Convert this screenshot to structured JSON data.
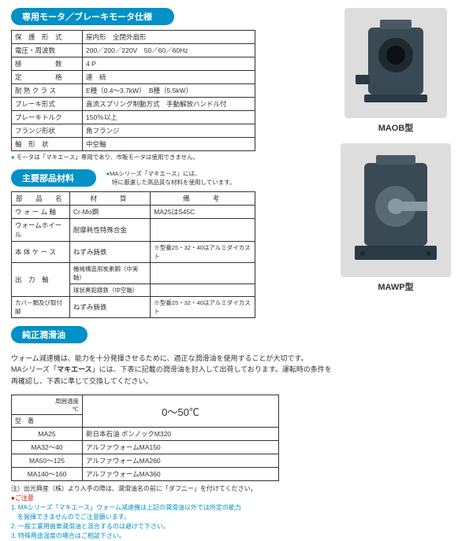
{
  "sections": {
    "motor_spec": "専用モータ／ブレーキモータ仕様",
    "materials": "主要部品材料",
    "lubricant": "純正潤滑油"
  },
  "motor_spec_table": {
    "rows": [
      {
        "label": "保　護　形　式",
        "value": "屋内形　全閉外扇形"
      },
      {
        "label": "電圧・周波数",
        "value": "200／200／220V　50／60／60Hz"
      },
      {
        "label": "極　　　　　数",
        "value": "4 P"
      },
      {
        "label": "定　　　　　格",
        "value": "連　続"
      },
      {
        "label": "耐 熱 ク ラ ス",
        "value": "E種（0.4～3.7kW）　B種（5.5kW）"
      },
      {
        "label": "ブレーキ形式",
        "value": "直流スプリング制動方式　手動解放ハンドル付"
      },
      {
        "label": "ブレーキトルク",
        "value": "150％以上"
      },
      {
        "label": "フランジ形状",
        "value": "角フランジ"
      },
      {
        "label": "軸　形　状",
        "value": "中空軸"
      }
    ],
    "note": "モータは「マキエース」専用であり、市販モータは使用できません。"
  },
  "materials_note": {
    "line1": "MAシリーズ「マキエース」には、",
    "line2": "特に厳選した高品質な材料を使用しています。"
  },
  "materials_table": {
    "headers": {
      "name": "部　品　名",
      "material": "材　　質",
      "remark": "備　　考"
    },
    "rows": [
      {
        "name": "ウ ォ ー ム 軸",
        "material": "Cr-Mo鋼",
        "remark": "MA25はS45C"
      },
      {
        "name": "ウォームホイール",
        "material": "耐摩耗性特殊合金",
        "remark": ""
      },
      {
        "name": "本 体 ケ ー ス",
        "material": "ねずみ鋳鉄",
        "remark": "※型番25・32・40はアルミダイカスト"
      },
      {
        "name_rowspan": "出　力　軸",
        "material": "機械構造用炭素鋼（中実軸）",
        "remark": ""
      },
      {
        "material2": "球状黒鉛鋳鉄（中空軸）",
        "remark2": ""
      },
      {
        "name": "カバー類及び取付脚",
        "material": "ねずみ鋳鉄",
        "remark": "※型番25・32・40はアルミダイカスト"
      }
    ]
  },
  "lubricant_text": {
    "line1": "ウォーム減速機は、能力を十分発揮させるために、適正な潤滑油を使用することが大切です。",
    "line2a": "MAシリーズ「",
    "line2b": "マキエース",
    "line2c": "」には、下表に記載の潤滑油を封入して出荷しております。運転時の条件を",
    "line3": "再確認し、下表に準じて交換してください。"
  },
  "lubricant_table": {
    "header_temp_label": "周囲温度\n℃",
    "header_model": "型　番",
    "temp_range": "0～50℃",
    "rows": [
      {
        "model": "MA25",
        "oil": "新日本石油 ボンノックM320"
      },
      {
        "model": "MA32～40",
        "oil": "アルファウォームMA150"
      },
      {
        "model": "MA50～125",
        "oil": "アルファウォームMA260"
      },
      {
        "model": "MA140～160",
        "oil": "アルファウォームMA360"
      }
    ]
  },
  "footnotes": {
    "note1": "注）出光興産（株）より入手の際は、潤滑油名の前に「ダフニー」を付けてください。",
    "caution_label": "●ご注意",
    "caution1a": "1. MAシリーズ「マキエース」ウォーム減速機は上記の潤滑油以外では所定の能力",
    "caution1b": "　を発揮できませんのでご注意願います。",
    "caution2": "2. 一般工業用歯車潤滑油と混合するのは避けて下さい。",
    "caution3": "3. 特殊用途温度の場合はご相談下さい。"
  },
  "product_labels": {
    "maob": "MAOB型",
    "mawp": "MAWP型"
  },
  "colors": {
    "accent": "#0091c6",
    "caution": "#d00"
  }
}
